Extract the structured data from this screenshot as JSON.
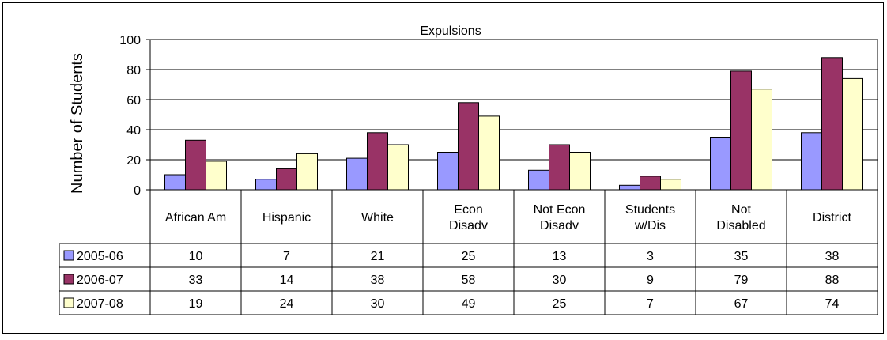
{
  "chart_data": {
    "type": "bar",
    "title": "Expulsions",
    "ylabel": "Number of Students",
    "xlabel": "",
    "ylim": [
      0,
      100
    ],
    "yticks": [
      0,
      20,
      40,
      60,
      80,
      100
    ],
    "grid": true,
    "legend": "data-table-left",
    "categories": [
      [
        "African Am"
      ],
      [
        "Hispanic"
      ],
      [
        "White"
      ],
      [
        "Econ",
        "Disadv"
      ],
      [
        "Not Econ",
        "Disadv"
      ],
      [
        "Students",
        "w/Dis"
      ],
      [
        "Not",
        "Disabled"
      ],
      [
        "District"
      ]
    ],
    "series": [
      {
        "name": "2005-06",
        "color": "#9999ff",
        "values": [
          10,
          7,
          21,
          25,
          13,
          3,
          35,
          38
        ]
      },
      {
        "name": "2006-07",
        "color": "#993366",
        "values": [
          33,
          14,
          38,
          58,
          30,
          9,
          79,
          88
        ]
      },
      {
        "name": "2007-08",
        "color": "#ffffcc",
        "values": [
          19,
          24,
          30,
          49,
          25,
          7,
          67,
          74
        ]
      }
    ]
  }
}
